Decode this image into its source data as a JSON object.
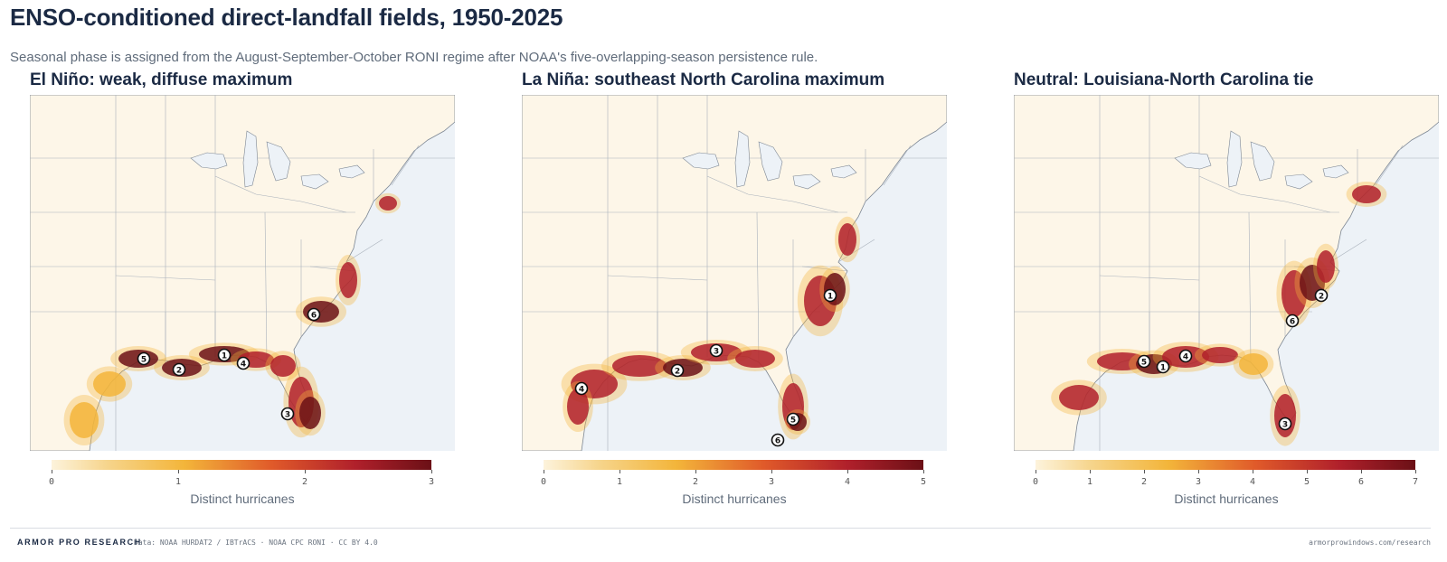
{
  "header": {
    "title": "ENSO-conditioned direct-landfall fields, 1950-2025",
    "subtitle": "Seasonal phase is assigned from the August-September-October RONI regime after NOAA's five-overlapping-season persistence rule."
  },
  "colors": {
    "ocean": "#edf2f7",
    "land": "#fdf6e8",
    "low": "#f3b53a",
    "mid": "#e05a2a",
    "high": "#b0202b",
    "max": "#6b1016",
    "marker_fill": "#ffffff",
    "marker_stroke": "#111111"
  },
  "panels": [
    {
      "title": "El Niño: weak, diffuse maximum",
      "colorbar": {
        "label": "Distinct hurricanes",
        "ticks": [
          "0",
          "1",
          "2",
          "3"
        ],
        "max": 3
      },
      "markers": [
        {
          "rank": "1",
          "place": "Florida Panhandle"
        },
        {
          "rank": "2",
          "place": "Louisiana"
        },
        {
          "rank": "3",
          "place": "South Florida"
        },
        {
          "rank": "4",
          "place": "Big Bend"
        },
        {
          "rank": "5",
          "place": "Southwest Louisiana"
        },
        {
          "rank": "6",
          "place": "South Carolina"
        }
      ]
    },
    {
      "title": "La Niña: southeast North Carolina maximum",
      "colorbar": {
        "label": "Distinct hurricanes",
        "ticks": [
          "0",
          "1",
          "2",
          "3",
          "4",
          "5"
        ],
        "max": 5
      },
      "markers": [
        {
          "rank": "1",
          "place": "Southeast North Carolina"
        },
        {
          "rank": "2",
          "place": "Louisiana"
        },
        {
          "rank": "3",
          "place": "Florida Panhandle"
        },
        {
          "rank": "4",
          "place": "Texas coast"
        },
        {
          "rank": "5",
          "place": "South Florida"
        },
        {
          "rank": "6",
          "place": "Florida Keys"
        }
      ]
    },
    {
      "title": "Neutral: Louisiana-North Carolina tie",
      "colorbar": {
        "label": "Distinct hurricanes",
        "ticks": [
          "0",
          "1",
          "2",
          "3",
          "4",
          "5",
          "6",
          "7"
        ],
        "max": 7
      },
      "markers": [
        {
          "rank": "1",
          "place": "Southeast Louisiana"
        },
        {
          "rank": "2",
          "place": "North Carolina"
        },
        {
          "rank": "3",
          "place": "South Florida"
        },
        {
          "rank": "4",
          "place": "Alabama-Mississippi"
        },
        {
          "rank": "5",
          "place": "Southwest Louisiana"
        },
        {
          "rank": "6",
          "place": "South Carolina"
        }
      ]
    }
  ],
  "footer": {
    "brand": "ARMOR PRO RESEARCH",
    "source": "Data: NOAA HURDAT2 / IBTrACS · NOAA CPC RONI · CC BY 4.0",
    "url": "armorprowindows.com/research"
  }
}
